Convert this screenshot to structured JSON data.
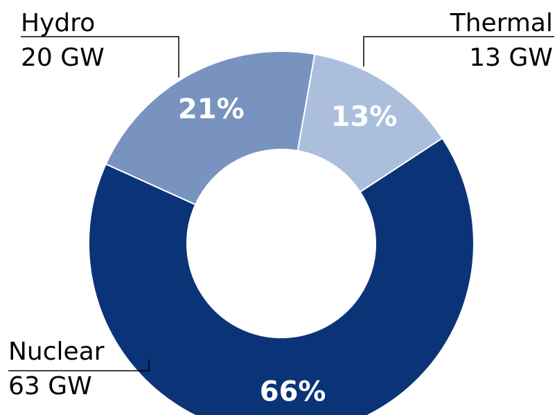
{
  "chart_data": {
    "type": "donut",
    "categories": [
      "Thermal",
      "Nuclear",
      "Hydro"
    ],
    "values": [
      13,
      66,
      21
    ],
    "value_labels": [
      "13%",
      "66%",
      "21%"
    ],
    "colors": [
      "#abbfdd",
      "#0b3478",
      "#7893bf"
    ],
    "capacity": {
      "values": [
        13,
        63,
        20
      ],
      "labels": [
        "13 GW",
        "63 GW",
        "20 GW"
      ]
    }
  }
}
